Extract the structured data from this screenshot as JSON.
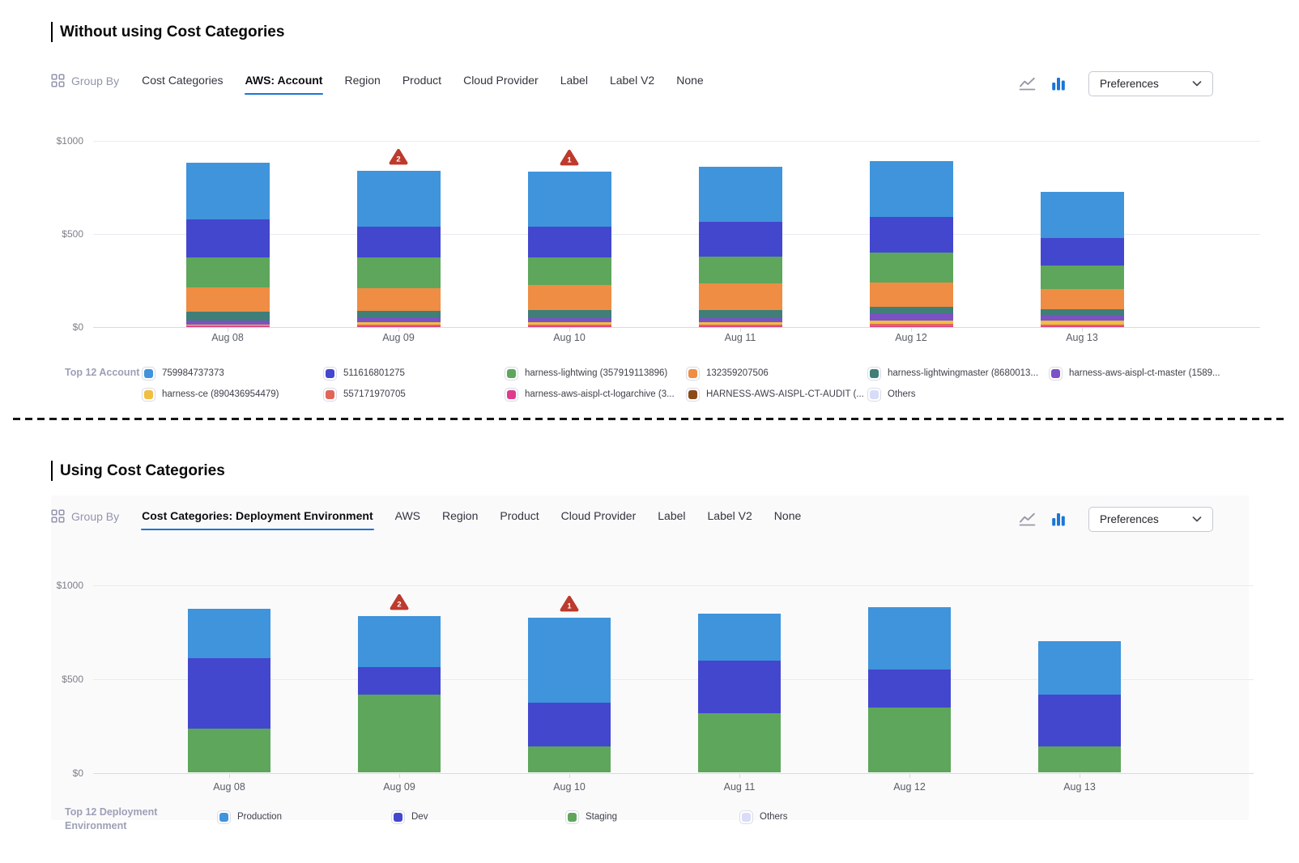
{
  "colors": {
    "accent_blue": "#1A76D8",
    "anomaly_red": "#BD3A2C",
    "gridline": "#EBEBF0",
    "axis_line": "#D6D9F1",
    "panel_bg": "#FAFAFB"
  },
  "sections": {
    "without": {
      "title": "Without using Cost Categories",
      "toolbar": {
        "group_by_label": "Group By",
        "tabs": [
          {
            "label": "Cost Categories",
            "selected": false
          },
          {
            "label": "AWS: Account",
            "selected": true
          },
          {
            "label": "Region",
            "selected": false
          },
          {
            "label": "Product",
            "selected": false
          },
          {
            "label": "Cloud Provider",
            "selected": false
          },
          {
            "label": "Label",
            "selected": false
          },
          {
            "label": "Label V2",
            "selected": false
          },
          {
            "label": "None",
            "selected": false
          }
        ],
        "chart_type_icons": [
          {
            "name": "line-chart-icon",
            "active": false
          },
          {
            "name": "bar-chart-icon",
            "active": true
          }
        ],
        "preferences_label": "Preferences"
      },
      "legend_title": "Top 12 Account"
    },
    "with": {
      "title": "Using Cost Categories",
      "toolbar": {
        "group_by_label": "Group By",
        "tabs": [
          {
            "label": "Cost Categories: Deployment Environment",
            "selected": true
          },
          {
            "label": "AWS",
            "selected": false
          },
          {
            "label": "Region",
            "selected": false
          },
          {
            "label": "Product",
            "selected": false
          },
          {
            "label": "Cloud Provider",
            "selected": false
          },
          {
            "label": "Label",
            "selected": false
          },
          {
            "label": "Label V2",
            "selected": false
          },
          {
            "label": "None",
            "selected": false
          }
        ],
        "chart_type_icons": [
          {
            "name": "line-chart-icon",
            "active": false
          },
          {
            "name": "bar-chart-icon",
            "active": true
          }
        ],
        "preferences_label": "Preferences"
      },
      "legend_title": "Top 12 Deployment Environment"
    }
  },
  "chart_data": [
    {
      "id": "without",
      "type": "bar",
      "stacked": true,
      "title": "",
      "categories": [
        "Aug 08",
        "Aug 09",
        "Aug 10",
        "Aug 11",
        "Aug 12",
        "Aug 13"
      ],
      "ylim": [
        0,
        1000
      ],
      "yticks": [
        {
          "value": 0,
          "label": "$0"
        },
        {
          "value": 500,
          "label": "$500"
        },
        {
          "value": 1000,
          "label": "$1000"
        }
      ],
      "grid": true,
      "legend_position": "bottom",
      "legend_title": "Top 12 Account",
      "series": [
        {
          "name": "759984737373",
          "color": "#3F94DB",
          "values": [
            306,
            300,
            295,
            296,
            300,
            246
          ]
        },
        {
          "name": "511616801275",
          "color": "#4347CE",
          "values": [
            205,
            166,
            167,
            184,
            193,
            152
          ]
        },
        {
          "name": "harness-lightwing (357919113896)",
          "color": "#5EA65B",
          "values": [
            161,
            164,
            147,
            147,
            160,
            124
          ]
        },
        {
          "name": "132359207506",
          "color": "#EE8D43",
          "values": [
            131,
            125,
            137,
            141,
            130,
            110
          ]
        },
        {
          "name": "harness-lightwingmaster (8680013...",
          "color": "#407E78",
          "values": [
            48,
            35,
            44,
            45,
            37,
            29
          ]
        },
        {
          "name": "harness-aws-aispl-ct-master (1589...",
          "color": "#7B52C4",
          "values": [
            20,
            24,
            21,
            22,
            40,
            32
          ]
        },
        {
          "name": "harness-ce (890436954479)",
          "color": "#F0BE41",
          "values": [
            6,
            14,
            12,
            12,
            15,
            20
          ]
        },
        {
          "name": "557171970705",
          "color": "#DF6658",
          "values": [
            3,
            6,
            8,
            8,
            12,
            8
          ]
        },
        {
          "name": "harness-aws-aispl-ct-logarchive (3...",
          "color": "#DF3A8C",
          "values": [
            1,
            2,
            2,
            2,
            2,
            2
          ]
        },
        {
          "name": "HARNESS-AWS-AISPL-CT-AUDIT (...",
          "color": "#8B4A17",
          "values": [
            1,
            1,
            1,
            1,
            1,
            1
          ]
        },
        {
          "name": "Others",
          "color": "#D9DCF8",
          "values": [
            1,
            1,
            1,
            1,
            1,
            1
          ]
        }
      ],
      "anomalies": [
        {
          "category": "Aug 09",
          "count": 2
        },
        {
          "category": "Aug 10",
          "count": 1
        }
      ]
    },
    {
      "id": "with",
      "type": "bar",
      "stacked": true,
      "title": "",
      "categories": [
        "Aug 08",
        "Aug 09",
        "Aug 10",
        "Aug 11",
        "Aug 12",
        "Aug 13"
      ],
      "ylim": [
        0,
        1000
      ],
      "yticks": [
        {
          "value": 0,
          "label": "$0"
        },
        {
          "value": 500,
          "label": "$500"
        },
        {
          "value": 1000,
          "label": "$1000"
        }
      ],
      "grid": true,
      "legend_position": "bottom",
      "legend_title": "Top 12 Deployment Environment",
      "series": [
        {
          "name": "Production",
          "color": "#3F94DB",
          "values": [
            264,
            274,
            456,
            249,
            331,
            288
          ]
        },
        {
          "name": "Dev",
          "color": "#4347CE",
          "values": [
            377,
            147,
            230,
            280,
            206,
            274
          ]
        },
        {
          "name": "Staging",
          "color": "#5EA65B",
          "values": [
            235,
            415,
            142,
            318,
            346,
            142
          ]
        },
        {
          "name": "Others",
          "color": "#D9DCF8",
          "values": [
            0,
            0,
            0,
            0,
            0,
            0
          ]
        }
      ],
      "anomalies": [
        {
          "category": "Aug 09",
          "count": 2
        },
        {
          "category": "Aug 10",
          "count": 1
        }
      ]
    }
  ]
}
